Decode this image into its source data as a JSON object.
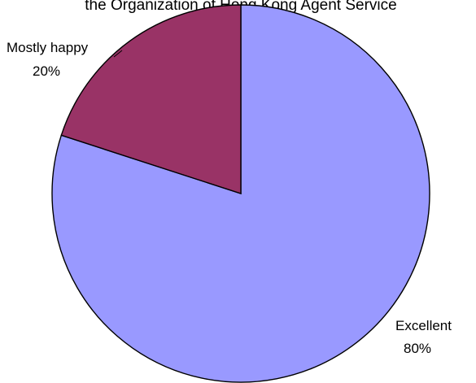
{
  "chart_data": {
    "type": "pie",
    "title": "the Organization of Hong Kong Agent Service",
    "categories": [
      "Excellent",
      "Mostly happy"
    ],
    "values": [
      80,
      20
    ],
    "labels": [
      {
        "name": "Excellent",
        "percent": "80%"
      },
      {
        "name": "Mostly happy",
        "percent": "20%"
      }
    ],
    "colors": [
      "#9999ff",
      "#993366"
    ],
    "legend": "none"
  }
}
